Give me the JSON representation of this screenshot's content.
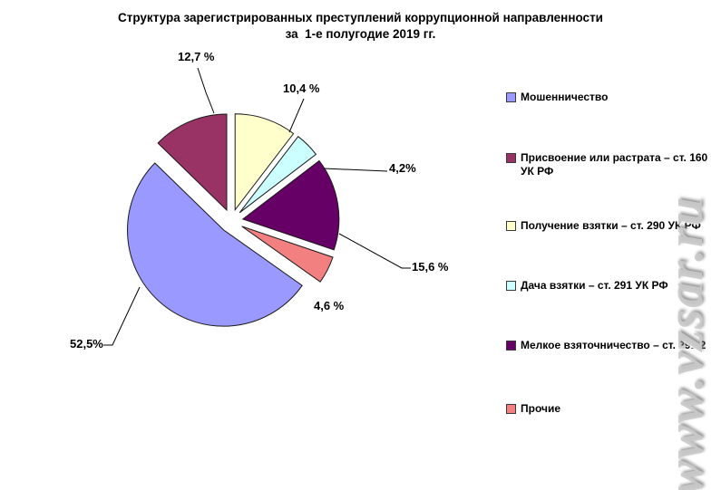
{
  "page": {
    "background": "#FFFFFF"
  },
  "title": {
    "line1": "Структура зарегистрированных преступлений коррупционной направленности",
    "line2": "за  1-е полугодие 2019 гг."
  },
  "watermark": {
    "text": "www.vzsar.ru"
  },
  "chart_data": {
    "type": "pie",
    "title": "Структура зарегистрированных преступлений коррупционной направленности за 1-е полугодие 2019 гг.",
    "unit": "%",
    "exploded": true,
    "start_angle_deg_clockwise_from_top": 125.3,
    "legend_position": "right",
    "outline_color": "#1a1a1a",
    "slices": [
      {
        "label": "Мошенничество",
        "value": 52.5,
        "pct_label": "52,5%",
        "color": "#9999FF"
      },
      {
        "label": "Присвоение или растрата – ст. 160 УК РФ",
        "value": 12.7,
        "pct_label": "12,7 %",
        "color": "#993366"
      },
      {
        "label": "Получение взятки – ст. 290 УК РФ",
        "value": 10.4,
        "pct_label": "10,4 %",
        "color": "#FFFFCC"
      },
      {
        "label": "Дача взятки – ст. 291 УК РФ",
        "value": 4.2,
        "pct_label": "4,2%",
        "color": "#CCFFFF"
      },
      {
        "label": "Мелкое взяточничество – ст. 291.2",
        "value": 15.6,
        "pct_label": "15,6 %",
        "color": "#660066"
      },
      {
        "label": "Прочие",
        "value": 4.6,
        "pct_label": "4,6 %",
        "color": "#F28080"
      }
    ]
  }
}
